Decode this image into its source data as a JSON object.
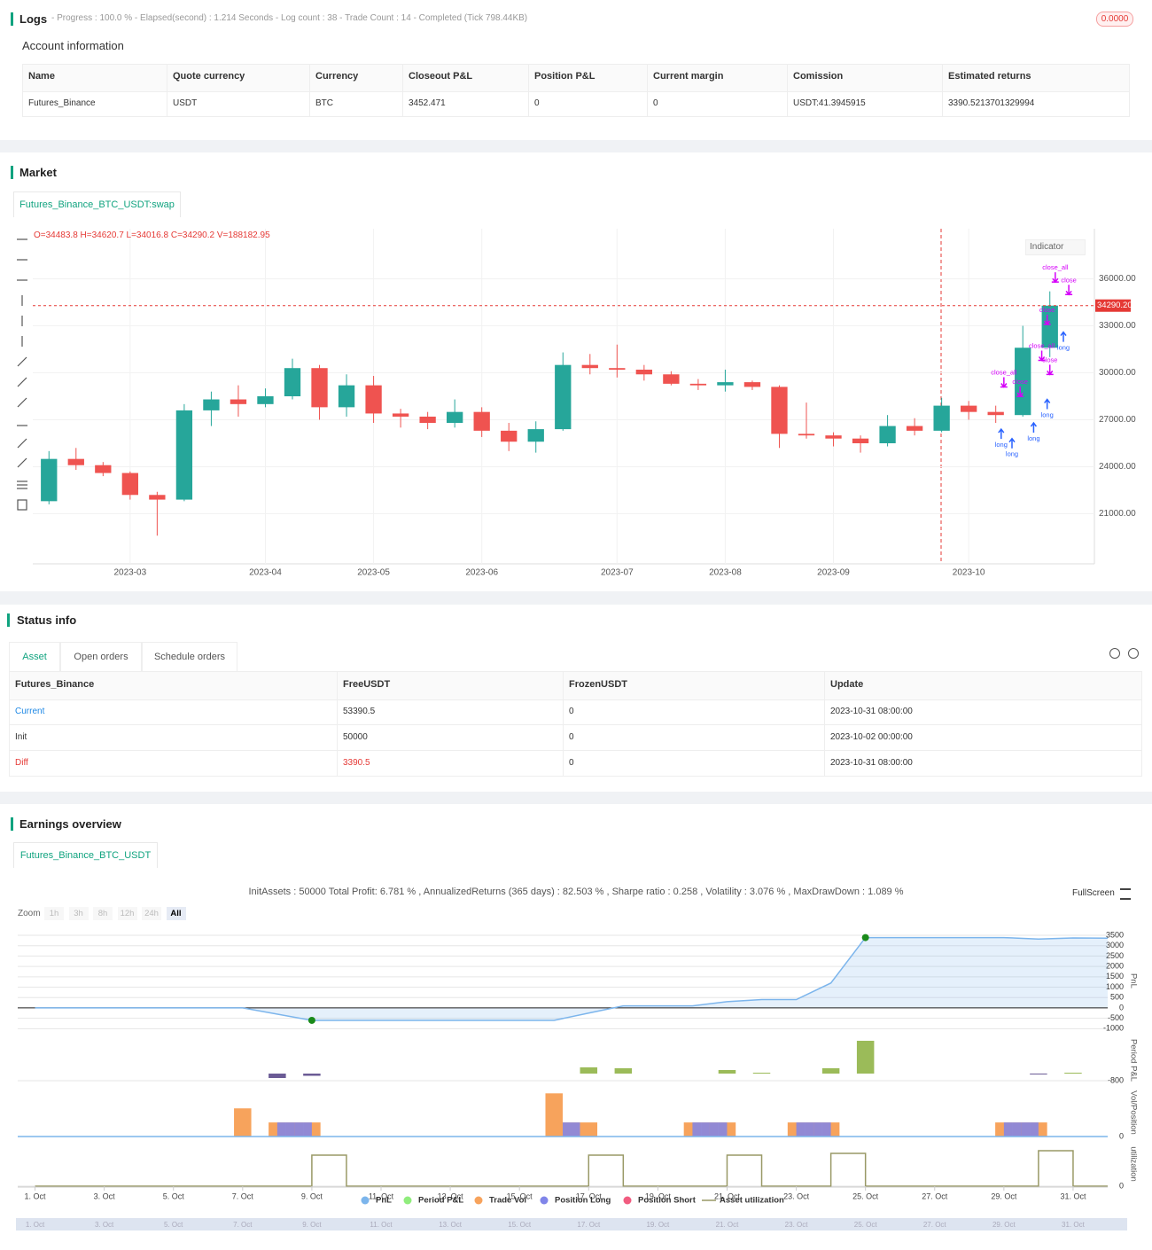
{
  "logs": {
    "title": "Logs",
    "summary": "- Progress : 100.0 % - Elapsed(second) : 1.214  Seconds - Log count : 38 - Trade Count : 14 - Completed (Tick 798.44KB)",
    "badge": "0.0000"
  },
  "account": {
    "title": "Account information",
    "columns": [
      "Name",
      "Quote currency",
      "Currency",
      "Closeout P&L",
      "Position P&L",
      "Current margin",
      "Comission",
      "Estimated returns"
    ],
    "rows": [
      [
        "Futures_Binance",
        "USDT",
        "BTC",
        "3452.471",
        "0",
        "0",
        "USDT:41.3945915",
        "3390.5213701329994"
      ]
    ]
  },
  "market": {
    "title": "Market",
    "tab": "Futures_Binance_BTC_USDT:swap",
    "ohlc": "O=34483.8 H=34620.7 L=34016.8 C=34290.2 V=188182.95",
    "indicator_button": "Indicator"
  },
  "status": {
    "title": "Status info",
    "tabs": [
      "Asset",
      "Open orders",
      "Schedule orders"
    ],
    "columns": [
      "Futures_Binance",
      "FreeUSDT",
      "FrozenUSDT",
      "Update"
    ],
    "rows": [
      [
        "Current",
        "53390.5",
        "0",
        "2023-10-31 08:00:00"
      ],
      [
        "Init",
        "50000",
        "0",
        "2023-10-02 00:00:00"
      ],
      [
        "Diff",
        "3390.5",
        "0",
        "2023-10-31 08:00:00"
      ]
    ]
  },
  "earnings": {
    "title": "Earnings overview",
    "tab": "Futures_Binance_BTC_USDT",
    "summary": "InitAssets : 50000 Total Profit: 6.781 % , AnnualizedReturns (365 days) : 82.503 % , Sharpe ratio : 0.258 , Volatility : 3.076 % , MaxDrawDown : 1.089 %",
    "fullscreen": "FullScreen",
    "zoom_label": "Zoom",
    "zoom_buttons": [
      "1h",
      "3h",
      "8h",
      "12h",
      "24h",
      "All"
    ],
    "legend": [
      {
        "name": "PnL",
        "color": "#7cb5ec"
      },
      {
        "name": "Period P&L",
        "color": "#90ed7d"
      },
      {
        "name": "Trade Vol",
        "color": "#f7a35c"
      },
      {
        "name": "Position Long",
        "color": "#8085e9"
      },
      {
        "name": "Position Short",
        "color": "#f15c80"
      },
      {
        "name": "Asset utilization",
        "color": "#999966"
      }
    ]
  },
  "chart_data": [
    {
      "type": "candlestick",
      "categories": [
        null,
        null,
        null,
        "2023-03",
        null,
        null,
        null,
        null,
        "2023-04",
        null,
        null,
        null,
        "2023-05",
        null,
        null,
        null,
        "2023-06",
        null,
        null,
        null,
        null,
        "2023-07",
        null,
        null,
        null,
        "2023-08",
        null,
        null,
        null,
        "2023-09",
        null,
        null,
        null,
        null,
        "2023-10",
        null,
        null,
        null
      ],
      "open": [
        21800,
        24500,
        24100,
        23600,
        22200,
        21900,
        27600,
        28300,
        28000,
        28500,
        30300,
        27800,
        29200,
        27400,
        27200,
        26800,
        27500,
        26300,
        25600,
        26400,
        30500,
        30300,
        30200,
        29900,
        29300,
        29200,
        29400,
        29100,
        26100,
        26000,
        25800,
        25500,
        26600,
        26300,
        27900,
        27500,
        27300,
        31600
      ],
      "high": [
        25000,
        25200,
        24300,
        23700,
        22400,
        28000,
        28800,
        29200,
        29000,
        30900,
        30500,
        29900,
        29800,
        27700,
        27500,
        28300,
        27800,
        26800,
        26900,
        31300,
        31200,
        31800,
        30500,
        30100,
        29600,
        30200,
        29500,
        29200,
        28100,
        26200,
        26000,
        27300,
        27100,
        28400,
        28200,
        27900,
        33000,
        35200
      ],
      "low": [
        21600,
        23800,
        23400,
        21900,
        19600,
        21800,
        26600,
        27200,
        27800,
        28300,
        27000,
        27200,
        26800,
        26500,
        26400,
        26500,
        25900,
        25000,
        24900,
        26300,
        29900,
        29700,
        29500,
        29200,
        28900,
        28800,
        28900,
        25200,
        25800,
        25300,
        24900,
        25300,
        26000,
        26200,
        27000,
        26800,
        27200,
        31000
      ],
      "close": [
        24500,
        24100,
        23600,
        22200,
        21900,
        27600,
        28300,
        28000,
        28500,
        30300,
        27800,
        29200,
        27400,
        27200,
        26800,
        27500,
        26300,
        25600,
        26400,
        30500,
        30300,
        30200,
        29900,
        29300,
        29200,
        29400,
        29100,
        26100,
        26000,
        25800,
        25500,
        26600,
        26300,
        27900,
        27500,
        27300,
        31600,
        34290.2
      ],
      "up_color": "#26a69a",
      "down_color": "#ef5350",
      "ylim": [
        17800,
        39200
      ],
      "yticks": [
        {
          "value": 21000,
          "label": "21000.00"
        },
        {
          "value": 24000,
          "label": "24000.00"
        },
        {
          "value": 27000,
          "label": "27000.00"
        },
        {
          "value": 30000,
          "label": "30000.00"
        },
        {
          "value": 33000,
          "label": "33000.00"
        },
        {
          "value": 36000,
          "label": "36000.00"
        }
      ],
      "last_price": {
        "value": 34290.2,
        "label": "34290.20"
      },
      "annotations": [
        {
          "text": "long",
          "x": 35.2,
          "y": 26400,
          "color": "#2962ff"
        },
        {
          "text": "long",
          "x": 35.6,
          "y": 25800,
          "color": "#2962ff"
        },
        {
          "text": "long",
          "x": 36.4,
          "y": 26800,
          "color": "#2962ff"
        },
        {
          "text": "long",
          "x": 36.9,
          "y": 28300,
          "color": "#2962ff"
        },
        {
          "text": "long",
          "x": 37.5,
          "y": 32600,
          "color": "#2962ff"
        },
        {
          "text": "close_all",
          "x": 35.3,
          "y": 30000,
          "color": "#d500f9"
        },
        {
          "text": "close",
          "x": 35.9,
          "y": 29400,
          "color": "#d500f9"
        },
        {
          "text": "close_all",
          "x": 36.7,
          "y": 31700,
          "color": "#d500f9"
        },
        {
          "text": "close",
          "x": 36.9,
          "y": 34000,
          "color": "#d500f9"
        },
        {
          "text": "close",
          "x": 37.0,
          "y": 30800,
          "color": "#d500f9"
        },
        {
          "text": "close_all",
          "x": 37.2,
          "y": 36700,
          "color": "#d500f9"
        },
        {
          "text": "close",
          "x": 37.7,
          "y": 35900,
          "color": "#d500f9"
        }
      ]
    },
    {
      "type": "area",
      "y_label": "PnL",
      "color": "#7cb5ec",
      "marker_color": "#1a8a1a",
      "xlim": [
        0.5,
        32
      ],
      "ylim": [
        -1200,
        3800
      ],
      "yticks": [
        -1000,
        -500,
        0,
        500,
        1000,
        1500,
        2000,
        2500,
        3000,
        3500
      ],
      "x": [
        1,
        7,
        9,
        16,
        17,
        18,
        20,
        21,
        22,
        23,
        24,
        25,
        27,
        29,
        30,
        31,
        32
      ],
      "values": [
        0,
        0,
        -600,
        -600,
        -250,
        100,
        100,
        300,
        400,
        400,
        1200,
        3390,
        3390,
        3390,
        3320,
        3370,
        3360
      ]
    },
    {
      "type": "bar",
      "y_label": "Period P&L",
      "color": "#9bbb59",
      "negative_color": "#6b5b95",
      "xlim": [
        0.5,
        32
      ],
      "ylim": [
        -1100,
        4100
      ],
      "yticks": [
        -800
      ],
      "x": [
        8,
        9,
        17,
        18,
        21,
        22,
        24,
        25,
        30,
        31
      ],
      "values": [
        -500,
        -250,
        700,
        600,
        400,
        100,
        600,
        3700,
        -100,
        100
      ]
    },
    {
      "type": "bar",
      "y_label": "Vol/Position",
      "xlim": [
        0.5,
        32
      ],
      "ylim": [
        0,
        1.02
      ],
      "yticks": [
        0
      ],
      "series": [
        {
          "name": "Trade Vol",
          "color": "#f7a35c",
          "x": [
            7,
            8,
            8.5,
            9,
            16,
            16.5,
            17,
            20,
            20.5,
            21,
            23,
            23.5,
            24,
            29,
            29.5,
            30
          ],
          "values": [
            0.6,
            0.3,
            0.3,
            0.3,
            0.92,
            0.3,
            0.3,
            0.3,
            0.3,
            0.3,
            0.3,
            0.3,
            0.3,
            0.3,
            0.3,
            0.3
          ]
        },
        {
          "name": "Position Long",
          "color": "#8085e9",
          "x": [
            8.25,
            8.75,
            16.5,
            20.25,
            20.75,
            23.25,
            23.75,
            29.25,
            29.75
          ],
          "values": [
            0.3,
            0.3,
            0.3,
            0.3,
            0.3,
            0.3,
            0.3,
            0.3,
            0.3
          ]
        }
      ]
    },
    {
      "type": "line",
      "step": true,
      "y_label": "utilization",
      "color": "#999966",
      "xlim": [
        0.5,
        32
      ],
      "ylim": [
        0,
        1
      ],
      "yticks": [
        0
      ],
      "x": [
        1,
        9,
        10,
        17,
        18,
        21,
        22,
        24,
        25,
        30,
        31,
        32
      ],
      "values": [
        0,
        0.7,
        0,
        0.7,
        0,
        0.7,
        0,
        0.74,
        0,
        0.8,
        0,
        0
      ],
      "xticks": [
        {
          "value": 1,
          "label": "1. Oct"
        },
        {
          "value": 3,
          "label": "3. Oct"
        },
        {
          "value": 5,
          "label": "5. Oct"
        },
        {
          "value": 7,
          "label": "7. Oct"
        },
        {
          "value": 9,
          "label": "9. Oct"
        },
        {
          "value": 11,
          "label": "11. Oct"
        },
        {
          "value": 13,
          "label": "13. Oct"
        },
        {
          "value": 15,
          "label": "15. Oct"
        },
        {
          "value": 17,
          "label": "17. Oct"
        },
        {
          "value": 19,
          "label": "19. Oct"
        },
        {
          "value": 21,
          "label": "21. Oct"
        },
        {
          "value": 23,
          "label": "23. Oct"
        },
        {
          "value": 25,
          "label": "25. Oct"
        },
        {
          "value": 27,
          "label": "27. Oct"
        },
        {
          "value": 29,
          "label": "29. Oct"
        },
        {
          "value": 31,
          "label": "31. Oct"
        }
      ]
    }
  ]
}
